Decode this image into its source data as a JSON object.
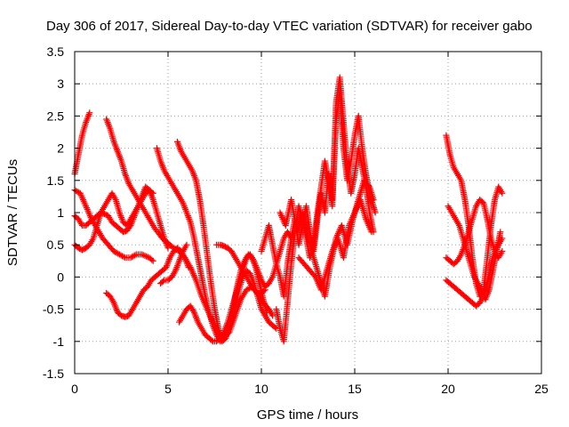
{
  "chart_data": {
    "type": "scatter",
    "title": "Day 306 of 2017, Sidereal Day-to-day VTEC variation (SDTVAR) for receiver gabo",
    "xlabel": "GPS time / hours",
    "ylabel": "SDTVAR / TECUs",
    "xlim": [
      0,
      25
    ],
    "ylim": [
      -1.5,
      3.5
    ],
    "xticks": [
      0,
      5,
      10,
      15,
      20,
      25
    ],
    "yticks": [
      -1.5,
      -1,
      -0.5,
      0,
      0.5,
      1,
      1.5,
      2,
      2.5,
      3,
      3.5
    ],
    "xtick_labels": [
      "0",
      "5",
      "10",
      "15",
      "20",
      "25"
    ],
    "ytick_labels": [
      "-1.5",
      "-1",
      "-0.5",
      "0",
      "0.5",
      "1",
      "1.5",
      "2",
      "2.5",
      "3",
      "3.5"
    ],
    "grid": true,
    "marker": "+",
    "color": "#ff0000",
    "series": [
      {
        "name": "s1",
        "x": [
          0.0,
          0.2,
          0.4,
          0.6,
          0.8
        ],
        "y": [
          1.6,
          1.9,
          2.2,
          2.4,
          2.55
        ]
      },
      {
        "name": "s2",
        "x": [
          0.0,
          0.3,
          0.6,
          0.9,
          1.2,
          1.5,
          1.8,
          2.1,
          2.4,
          2.7,
          3.0,
          3.3,
          3.6,
          4.0,
          4.2
        ],
        "y": [
          1.35,
          1.3,
          1.1,
          0.9,
          0.75,
          0.6,
          0.5,
          0.4,
          0.35,
          0.3,
          0.3,
          0.35,
          0.35,
          0.3,
          0.25
        ]
      },
      {
        "name": "s3",
        "x": [
          0.0,
          0.2,
          0.4,
          0.6,
          0.8,
          1.0,
          1.2,
          1.4,
          1.6,
          1.8,
          2.0,
          2.2,
          2.4,
          2.6,
          2.8,
          3.0,
          3.2,
          3.4,
          3.6,
          3.8,
          4.0,
          4.2
        ],
        "y": [
          0.5,
          0.45,
          0.42,
          0.45,
          0.5,
          0.6,
          0.8,
          1.0,
          1.1,
          1.2,
          1.3,
          1.2,
          1.0,
          0.85,
          0.8,
          0.9,
          1.0,
          1.1,
          1.2,
          1.3,
          1.35,
          1.3
        ]
      },
      {
        "name": "s4",
        "x": [
          0.0,
          0.2,
          0.4,
          0.6,
          0.8,
          1.0,
          1.2,
          1.4,
          1.6,
          1.8,
          2.0,
          2.2,
          2.4,
          2.6,
          2.8,
          3.0,
          3.2,
          3.4,
          3.6,
          3.8,
          4.0,
          4.2,
          4.4,
          4.6,
          4.8,
          5.0
        ],
        "y": [
          0.95,
          0.9,
          0.8,
          0.8,
          0.85,
          0.9,
          0.95,
          1.0,
          0.98,
          0.95,
          0.85,
          0.8,
          0.75,
          0.7,
          0.72,
          0.8,
          0.95,
          1.1,
          1.25,
          1.4,
          1.35,
          1.2,
          1.0,
          0.8,
          0.6,
          0.45
        ]
      },
      {
        "name": "s5",
        "x": [
          1.7,
          1.9,
          2.1,
          2.3,
          2.5,
          2.7,
          2.9,
          3.1,
          3.3,
          3.5,
          3.7,
          3.9,
          4.1,
          4.3,
          4.5,
          4.7,
          4.9,
          5.1,
          5.3,
          5.6,
          5.9,
          6.2,
          6.5,
          6.8,
          7.1,
          7.4,
          7.7,
          8.0,
          8.3,
          8.6,
          8.9,
          9.2,
          9.5,
          9.8,
          10.1,
          10.4,
          10.6
        ],
        "y": [
          2.45,
          2.3,
          2.1,
          1.95,
          1.8,
          1.6,
          1.45,
          1.35,
          1.25,
          1.15,
          1.05,
          0.95,
          0.85,
          0.75,
          0.68,
          0.6,
          0.55,
          0.5,
          0.45,
          0.4,
          0.3,
          0.15,
          -0.05,
          -0.3,
          -0.5,
          -0.7,
          -0.85,
          -0.95,
          -0.85,
          -0.6,
          -0.35,
          -0.2,
          -0.15,
          -0.25,
          -0.4,
          -0.5,
          -0.6
        ]
      },
      {
        "name": "s6",
        "x": [
          4.4,
          4.6,
          4.8,
          5.0,
          5.2,
          5.4,
          5.6,
          5.8,
          6.0,
          6.2,
          6.4,
          6.6,
          6.8,
          7.0,
          7.2,
          7.4,
          7.6,
          7.8,
          8.0,
          8.2,
          8.4,
          8.6,
          8.8,
          9.0,
          9.2,
          9.4,
          9.6,
          9.8,
          10.0,
          10.2,
          10.4,
          10.6,
          10.8
        ],
        "y": [
          2.0,
          1.8,
          1.65,
          1.55,
          1.45,
          1.35,
          1.25,
          1.15,
          1.0,
          0.85,
          0.6,
          0.3,
          0.0,
          -0.3,
          -0.55,
          -0.75,
          -0.9,
          -1.0,
          -0.95,
          -0.85,
          -0.65,
          -0.45,
          -0.2,
          0.0,
          0.1,
          0.05,
          -0.1,
          -0.3,
          -0.5,
          -0.6,
          -0.7,
          -0.75,
          -0.8
        ]
      },
      {
        "name": "s7",
        "x": [
          5.5,
          5.7,
          5.9,
          6.1,
          6.3,
          6.5,
          6.7,
          6.9,
          7.1,
          7.3,
          7.5,
          7.7,
          7.9,
          8.1,
          8.3,
          8.5,
          8.7,
          8.9,
          9.1,
          9.3,
          9.5,
          9.7,
          9.9,
          10.1,
          10.3
        ],
        "y": [
          2.1,
          1.95,
          1.85,
          1.75,
          1.65,
          1.5,
          1.2,
          0.8,
          0.35,
          -0.1,
          -0.5,
          -0.8,
          -1.0,
          -0.95,
          -0.75,
          -0.45,
          -0.15,
          0.1,
          0.25,
          0.35,
          0.3,
          0.15,
          -0.1,
          -0.35,
          -0.55
        ]
      },
      {
        "name": "s8",
        "x": [
          1.7,
          1.9,
          2.1,
          2.3,
          2.5,
          2.7,
          2.9,
          3.1,
          3.3,
          3.5,
          3.7,
          3.9,
          4.1,
          4.3,
          4.5,
          4.7,
          4.9,
          5.1,
          5.3,
          5.5,
          5.7,
          5.9,
          6.1
        ],
        "y": [
          -0.25,
          -0.3,
          -0.4,
          -0.55,
          -0.6,
          -0.62,
          -0.6,
          -0.5,
          -0.4,
          -0.3,
          -0.2,
          -0.15,
          -0.05,
          0.0,
          0.05,
          0.1,
          0.15,
          0.3,
          0.4,
          0.45,
          0.4,
          0.3,
          0.15
        ]
      },
      {
        "name": "s9",
        "x": [
          4.6,
          4.8,
          5.0,
          5.2,
          5.4,
          5.6,
          5.8,
          6.0
        ],
        "y": [
          -0.1,
          -0.05,
          -0.05,
          0.0,
          0.1,
          0.25,
          0.4,
          0.5
        ]
      },
      {
        "name": "s10",
        "x": [
          5.6,
          5.8,
          6.0,
          6.2,
          6.4,
          6.6,
          6.8,
          7.0,
          7.2,
          7.4,
          7.6,
          7.8,
          8.0,
          8.2,
          8.4,
          8.6,
          8.8,
          9.0,
          9.2,
          9.4,
          9.6,
          9.8,
          10.0,
          10.2,
          10.4,
          10.6,
          10.8,
          11.0,
          11.2,
          11.4,
          11.6
        ],
        "y": [
          -0.7,
          -0.6,
          -0.5,
          -0.45,
          -0.55,
          -0.7,
          -0.8,
          -0.9,
          -0.95,
          -1.0,
          -1.0,
          -0.95,
          -0.85,
          -0.7,
          -0.5,
          -0.3,
          -0.1,
          0.1,
          0.3,
          0.35,
          0.25,
          0.1,
          -0.05,
          -0.15,
          -0.1,
          0.0,
          0.2,
          0.4,
          0.6,
          0.7,
          0.6
        ]
      },
      {
        "name": "s11",
        "x": [
          7.6,
          7.8,
          8.0,
          8.2,
          8.4,
          8.6,
          8.8,
          9.0,
          9.2,
          9.4,
          9.6,
          9.8,
          10.0,
          10.2
        ],
        "y": [
          0.5,
          0.5,
          0.48,
          0.45,
          0.4,
          0.3,
          0.2,
          0.1,
          0.0,
          -0.1,
          -0.2,
          -0.25,
          -0.25,
          -0.2
        ]
      },
      {
        "name": "s12",
        "x": [
          10.0,
          10.2,
          10.4,
          10.6,
          10.8,
          11.0,
          11.2,
          11.4,
          11.6,
          11.8,
          12.0,
          12.2,
          12.4,
          12.6,
          12.8,
          13.0,
          13.2,
          13.4,
          13.6,
          13.8,
          14.0,
          14.2,
          14.4,
          14.6,
          14.8,
          15.0,
          15.2,
          15.4,
          15.6,
          15.8,
          16.0,
          16.1
        ],
        "y": [
          0.4,
          0.6,
          0.8,
          0.5,
          0.2,
          0.0,
          -0.3,
          0.2,
          0.6,
          0.9,
          0.5,
          0.8,
          1.1,
          0.7,
          0.4,
          0.9,
          1.3,
          1.0,
          1.6,
          1.2,
          2.4,
          2.9,
          2.0,
          1.5,
          1.8,
          2.2,
          2.5,
          2.0,
          1.6,
          1.3,
          1.1,
          1.0
        ]
      },
      {
        "name": "s13",
        "x": [
          10.8,
          11.0,
          11.2,
          11.4,
          11.6,
          11.8,
          12.0,
          12.2,
          12.4,
          12.6,
          12.8,
          13.0,
          13.2,
          13.4,
          13.6,
          13.8,
          14.0,
          14.2,
          14.4,
          14.6,
          14.8,
          15.0,
          15.2,
          15.4,
          15.6,
          15.8,
          16.0
        ],
        "y": [
          -0.5,
          -0.8,
          -1.0,
          -0.4,
          0.2,
          0.7,
          1.1,
          0.9,
          0.6,
          0.3,
          0.5,
          1.0,
          1.4,
          1.8,
          1.5,
          1.1,
          2.7,
          3.1,
          2.4,
          1.7,
          1.3,
          1.6,
          2.0,
          1.7,
          1.4,
          1.0,
          0.7
        ]
      },
      {
        "name": "s14",
        "x": [
          11.0,
          11.3,
          11.6,
          11.9,
          12.2,
          12.5,
          12.8,
          13.1,
          13.4,
          13.7,
          14.0,
          14.3,
          14.6,
          14.9,
          15.2,
          15.5,
          15.8,
          16.0
        ],
        "y": [
          1.0,
          0.8,
          1.2,
          0.7,
          1.0,
          0.6,
          0.3,
          0.0,
          -0.3,
          0.2,
          0.6,
          0.8,
          0.5,
          0.9,
          1.2,
          1.5,
          1.4,
          1.2
        ]
      },
      {
        "name": "s15",
        "x": [
          12.0,
          12.3,
          12.6,
          12.9,
          13.2,
          13.5,
          13.8,
          14.1,
          14.4,
          14.7,
          15.0,
          15.3,
          15.6,
          15.9
        ],
        "y": [
          0.3,
          0.2,
          0.1,
          0.0,
          -0.2,
          0.1,
          0.4,
          0.6,
          0.3,
          0.8,
          1.0,
          1.2,
          0.9,
          0.7
        ]
      },
      {
        "name": "s16",
        "x": [
          19.9,
          20.1,
          20.3,
          20.5,
          20.7,
          20.9,
          21.1,
          21.3,
          21.5,
          21.7,
          21.9,
          22.1,
          22.3,
          22.5,
          22.7,
          22.9
        ],
        "y": [
          2.2,
          1.9,
          1.7,
          1.6,
          1.5,
          1.2,
          0.8,
          0.3,
          -0.1,
          -0.3,
          -0.2,
          0.3,
          0.8,
          1.2,
          1.4,
          1.3
        ]
      },
      {
        "name": "s17",
        "x": [
          19.9,
          20.1,
          20.3,
          20.5,
          20.7,
          20.9,
          21.1,
          21.3,
          21.5,
          21.7,
          21.9,
          22.1,
          22.3,
          22.5,
          22.7,
          22.9
        ],
        "y": [
          0.3,
          0.25,
          0.2,
          0.25,
          0.35,
          0.5,
          0.7,
          0.9,
          1.1,
          1.2,
          1.15,
          0.9,
          0.6,
          0.4,
          0.3,
          0.4
        ]
      },
      {
        "name": "s18",
        "x": [
          19.9,
          20.1,
          20.3,
          20.5,
          20.7,
          20.9,
          21.1,
          21.3,
          21.5,
          21.7,
          21.9,
          22.1,
          22.3,
          22.5,
          22.7,
          22.9
        ],
        "y": [
          -0.05,
          -0.1,
          -0.15,
          -0.2,
          -0.25,
          -0.3,
          -0.35,
          -0.4,
          -0.45,
          -0.4,
          -0.3,
          -0.1,
          0.2,
          0.4,
          0.5,
          0.6
        ]
      },
      {
        "name": "s19",
        "x": [
          20.0,
          20.2,
          20.4,
          20.6,
          20.8,
          21.0,
          21.2,
          21.4,
          21.6,
          21.8,
          22.0,
          22.2,
          22.4,
          22.6,
          22.8
        ],
        "y": [
          1.1,
          1.0,
          0.9,
          0.8,
          0.6,
          0.4,
          0.2,
          0.0,
          -0.1,
          -0.2,
          -0.35,
          -0.2,
          0.1,
          0.4,
          0.7
        ]
      }
    ]
  }
}
